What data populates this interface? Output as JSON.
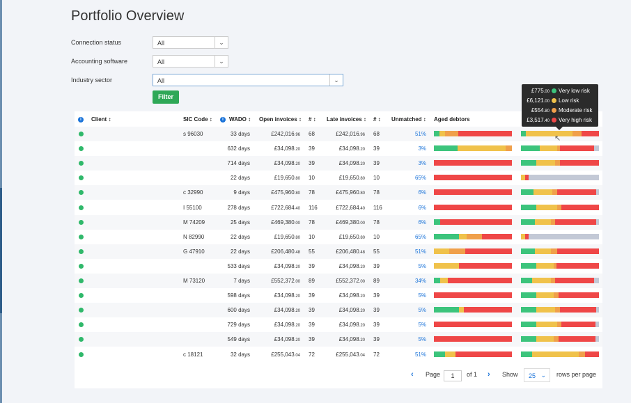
{
  "page": {
    "title": "Portfolio Overview"
  },
  "filters": [
    {
      "label": "Connection status",
      "value": "All"
    },
    {
      "label": "Accounting software",
      "value": "All"
    },
    {
      "label": "Industry sector",
      "value": "All"
    }
  ],
  "filter_button": "Filter",
  "table": {
    "headers": {
      "client": "Client ↕",
      "sic": "SIC Code ↕",
      "wado": "WADO ↕",
      "open": "Open invoices ↕",
      "count1": "# ↕",
      "late": "Late invoices ↕",
      "count2": "# ↕",
      "unmatched": "Unmatched ↕",
      "aged": "Aged debtors"
    },
    "info_icon": "i",
    "colors": {
      "very_low": "#3cc47c",
      "low": "#f0c24b",
      "moderate": "#f0a04b",
      "very_high": "#ef4747",
      "none": "#c3c9d6"
    },
    "rows": [
      {
        "sic": "s 96030",
        "wado": "33 days",
        "open": "£242,016",
        "open_p": ".96",
        "n1": "68",
        "late": "£242,016",
        "late_p": ".96",
        "n2": "68",
        "unm": "51%",
        "aged": [
          0.07,
          0.07,
          0.17,
          0.69,
          0
        ],
        "bar2": [
          0.06,
          0.6,
          0.12,
          0.22,
          0
        ]
      },
      {
        "sic": "",
        "wado": "632 days",
        "open": "£34,098",
        "open_p": ".20",
        "n1": "39",
        "late": "£34,098",
        "late_p": ".20",
        "n2": "39",
        "unm": "3%",
        "aged": [
          0.3,
          0.62,
          0.08,
          0,
          0
        ],
        "bar2": [
          0.24,
          0.22,
          0.04,
          0.44,
          0.06
        ]
      },
      {
        "sic": "",
        "wado": "714 days",
        "open": "£34,098",
        "open_p": ".20",
        "n1": "39",
        "late": "£34,098",
        "late_p": ".20",
        "n2": "39",
        "unm": "3%",
        "aged": [
          0,
          0,
          0,
          1,
          0
        ],
        "bar2": [
          0.2,
          0.24,
          0.06,
          0.5,
          0
        ]
      },
      {
        "sic": "",
        "wado": "22 days",
        "open": "£19,650",
        "open_p": ".80",
        "n1": "10",
        "late": "£19,650",
        "late_p": ".80",
        "n2": "10",
        "unm": "65%",
        "aged": [
          0,
          0,
          0,
          1,
          0
        ],
        "bar2": [
          0,
          0.05,
          0,
          0.05,
          0.9
        ]
      },
      {
        "sic": "c 32990",
        "wado": "9 days",
        "open": "£475,960",
        "open_p": ".80",
        "n1": "78",
        "late": "£475,960",
        "late_p": ".80",
        "n2": "78",
        "unm": "6%",
        "aged": [
          0,
          0,
          0,
          1,
          0
        ],
        "bar2": [
          0.16,
          0.24,
          0.06,
          0.5,
          0.04
        ]
      },
      {
        "sic": "I 55100",
        "wado": "278 days",
        "open": "£722,684",
        "open_p": ".40",
        "n1": "116",
        "late": "£722,684",
        "late_p": ".40",
        "n2": "116",
        "unm": "6%",
        "aged": [
          0,
          0,
          0,
          1,
          0
        ],
        "bar2": [
          0.2,
          0.26,
          0.06,
          0.48,
          0
        ]
      },
      {
        "sic": "M 74209",
        "wado": "25 days",
        "open": "£469,380",
        "open_p": ".00",
        "n1": "78",
        "late": "£469,380",
        "late_p": ".00",
        "n2": "78",
        "unm": "6%",
        "aged": [
          0.08,
          0,
          0,
          0.92,
          0
        ],
        "bar2": [
          0.18,
          0.2,
          0.06,
          0.52,
          0.04
        ]
      },
      {
        "sic": "N 82990",
        "wado": "22 days",
        "open": "£19,650",
        "open_p": ".80",
        "n1": "10",
        "late": "£19,650",
        "late_p": ".80",
        "n2": "10",
        "unm": "65%",
        "aged": [
          0.32,
          0.1,
          0.2,
          0.38,
          0
        ],
        "bar2": [
          0,
          0.05,
          0,
          0.05,
          0.9
        ]
      },
      {
        "sic": "G 47910",
        "wado": "22 days",
        "open": "£206,480",
        "open_p": ".48",
        "n1": "55",
        "late": "£206,480",
        "late_p": ".48",
        "n2": "55",
        "unm": "51%",
        "aged": [
          0,
          0.2,
          0.2,
          0.6,
          0
        ],
        "bar2": [
          0.18,
          0.2,
          0.08,
          0.54,
          0
        ]
      },
      {
        "sic": "",
        "wado": "533 days",
        "open": "£34,098",
        "open_p": ".20",
        "n1": "39",
        "late": "£34,098",
        "late_p": ".20",
        "n2": "39",
        "unm": "5%",
        "aged": [
          0,
          0.32,
          0,
          0.68,
          0
        ],
        "bar2": [
          0.2,
          0.22,
          0.04,
          0.54,
          0
        ]
      },
      {
        "sic": "M 73120",
        "wado": "7 days",
        "open": "£552,372",
        "open_p": ".00",
        "n1": "89",
        "late": "£552,372",
        "late_p": ".00",
        "n2": "89",
        "unm": "34%",
        "aged": [
          0.08,
          0.1,
          0,
          0.82,
          0
        ],
        "bar2": [
          0.14,
          0.24,
          0.06,
          0.5,
          0.06
        ]
      },
      {
        "sic": "",
        "wado": "598 days",
        "open": "£34,098",
        "open_p": ".20",
        "n1": "39",
        "late": "£34,098",
        "late_p": ".20",
        "n2": "39",
        "unm": "5%",
        "aged": [
          0,
          0,
          0,
          1,
          0
        ],
        "bar2": [
          0.2,
          0.22,
          0.06,
          0.52,
          0
        ]
      },
      {
        "sic": "",
        "wado": "600 days",
        "open": "£34,098",
        "open_p": ".20",
        "n1": "39",
        "late": "£34,098",
        "late_p": ".20",
        "n2": "39",
        "unm": "5%",
        "aged": [
          0.32,
          0.06,
          0,
          0.62,
          0
        ],
        "bar2": [
          0.2,
          0.24,
          0.06,
          0.46,
          0.04
        ]
      },
      {
        "sic": "",
        "wado": "729 days",
        "open": "£34,098",
        "open_p": ".20",
        "n1": "39",
        "late": "£34,098",
        "late_p": ".20",
        "n2": "39",
        "unm": "5%",
        "aged": [
          0,
          0,
          0,
          1,
          0
        ],
        "bar2": [
          0.2,
          0.26,
          0.06,
          0.44,
          0.04
        ]
      },
      {
        "sic": "",
        "wado": "549 days",
        "open": "£34,098",
        "open_p": ".20",
        "n1": "39",
        "late": "£34,098",
        "late_p": ".20",
        "n2": "39",
        "unm": "5%",
        "aged": [
          0,
          0,
          0,
          1,
          0
        ],
        "bar2": [
          0.2,
          0.22,
          0.06,
          0.48,
          0.04
        ]
      },
      {
        "sic": "c 18121",
        "wado": "32 days",
        "open": "£255,043",
        "open_p": ".04",
        "n1": "72",
        "late": "£255,043",
        "late_p": ".04",
        "n2": "72",
        "unm": "51%",
        "aged": [
          0.14,
          0.14,
          0,
          0.72,
          0
        ],
        "bar2": [
          0.14,
          0.6,
          0.08,
          0.18,
          0
        ]
      }
    ]
  },
  "tooltip": {
    "items": [
      {
        "amount": "£775",
        "pence": ".00",
        "label": "Very low risk",
        "color": "#3cc47c"
      },
      {
        "amount": "£6,121",
        "pence": ".00",
        "label": "Low risk",
        "color": "#f0c24b"
      },
      {
        "amount": "£554",
        "pence": ".80",
        "label": "Moderate risk",
        "color": "#f0a04b"
      },
      {
        "amount": "£3,517",
        "pence": ".40",
        "label": "Very high risk",
        "color": "#ef4747"
      }
    ]
  },
  "pager": {
    "page_label": "Page",
    "page_value": "1",
    "of_label": "of 1",
    "show_label": "Show",
    "rows_value": "25",
    "rows_label": "rows per page"
  }
}
